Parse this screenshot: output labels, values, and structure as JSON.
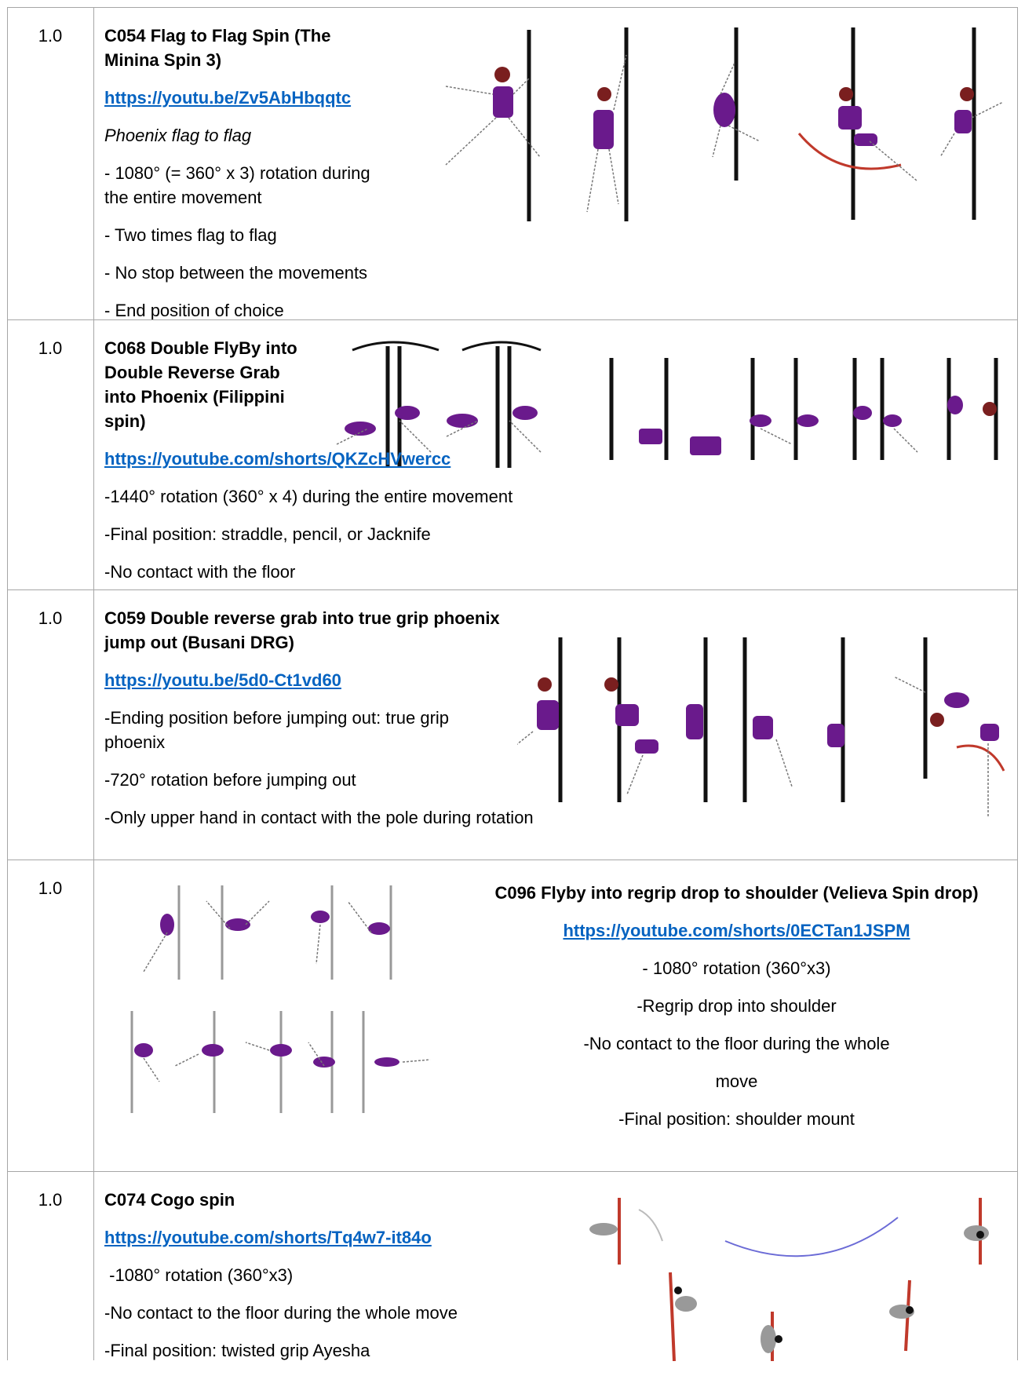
{
  "rows": [
    {
      "score": "1.0",
      "title": "C054 Flag to Flag Spin (The Minina Spin 3)",
      "link": "https://youtu.be/Zv5AbHbqqtc",
      "subtitle": "Phoenix flag to flag",
      "notes": [
        "- 1080° (= 360° x 3) rotation during the entire movement",
        "- Two times flag to flag",
        "- No stop between the movements",
        "- End position of choice"
      ]
    },
    {
      "score": "1.0",
      "title": "C068 Double FlyBy into Double Reverse Grab into Phoenix (Filippini spin)",
      "link": "https://youtube.com/shorts/QKZcHVwercc",
      "notes": [
        "-1440° rotation (360° x 4) during the entire movement",
        "-Final position: straddle, pencil, or Jacknife",
        "-No contact with the floor"
      ]
    },
    {
      "score": "1.0",
      "title": "C059 Double reverse grab into true grip phoenix jump out (Busani DRG)",
      "link": "https://youtu.be/5d0-Ct1vd60",
      "notes": [
        "-Ending position before jumping out: true grip phoenix",
        "-720° rotation before jumping out",
        "-Only upper hand in contact with the pole during rotation"
      ]
    },
    {
      "score": "1.0",
      "title": "C096 Flyby into regrip drop to shoulder (Velieva Spin drop)",
      "link": "https://youtube.com/shorts/0ECTan1JSPM",
      "notes": [
        "- 1080° rotation (360°x3)",
        "-Regrip drop into shoulder",
        "-No contact to the floor during the whole",
        "move",
        "-Final position: shoulder mount"
      ]
    },
    {
      "score": "1.0",
      "title": "C074 Cogo spin",
      "link": "https://youtube.com/shorts/Tq4w7-it84o",
      "notes": [
        " -1080° rotation (360°x3)",
        "-No contact to the floor during the whole move",
        "-Final position: twisted grip Ayesha"
      ]
    }
  ]
}
